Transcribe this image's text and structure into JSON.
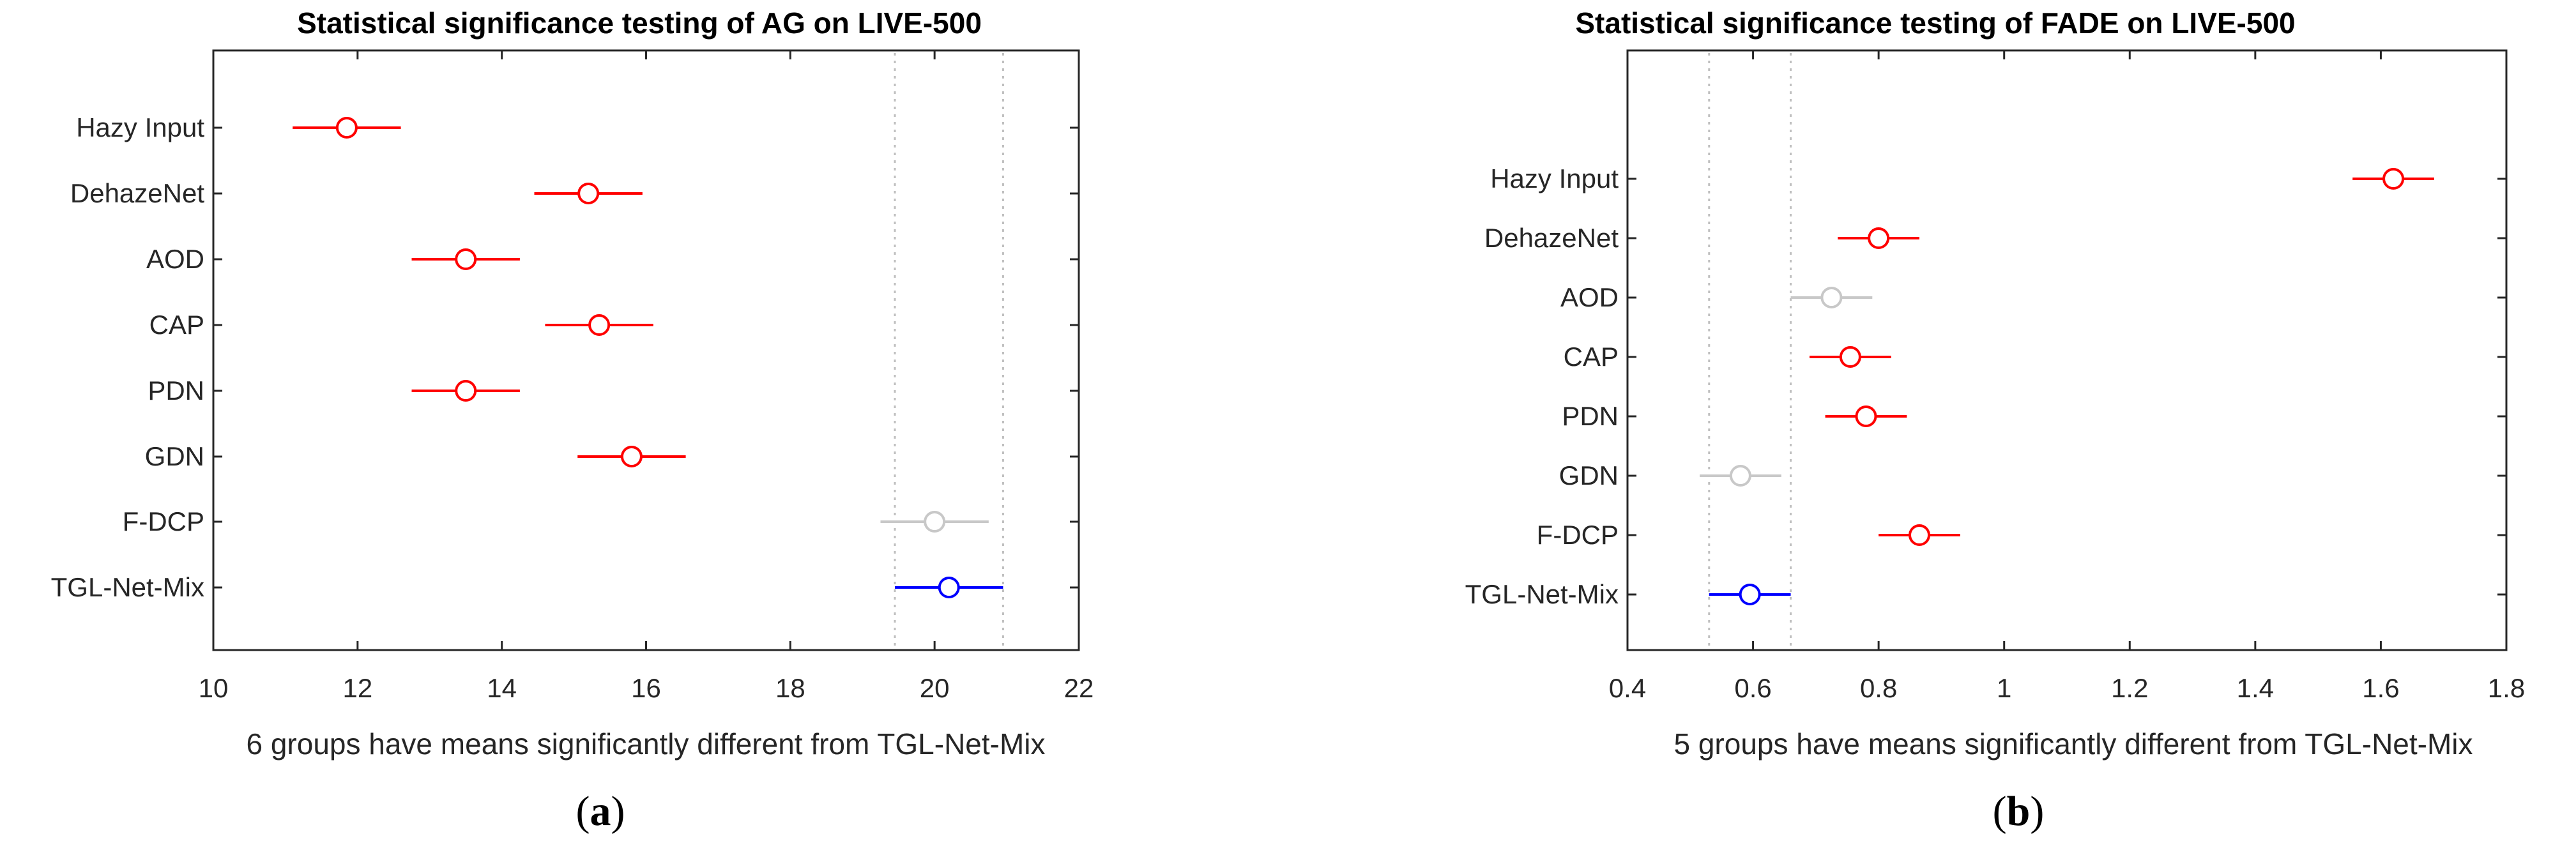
{
  "chart_data": [
    {
      "type": "scatter",
      "subtype": "multiple-comparison-intervals",
      "title": "Statistical significance testing of AG on LIVE-500",
      "xlabel": "6 groups have means significantly different from TGL-Net-Mix",
      "ylabel": "",
      "xlim": [
        10,
        22
      ],
      "xticks": [
        "10",
        "12",
        "14",
        "16",
        "18",
        "20",
        "22"
      ],
      "categories": [
        "Hazy Input",
        "DehazeNet",
        "AOD",
        "CAP",
        "PDN",
        "GDN",
        "F-DCP",
        "TGL-Net-Mix"
      ],
      "means": [
        11.85,
        15.2,
        13.5,
        15.35,
        13.5,
        15.8,
        20.0,
        20.2
      ],
      "lower": [
        11.1,
        14.45,
        12.75,
        14.6,
        12.75,
        15.05,
        19.25,
        19.45
      ],
      "upper": [
        12.6,
        15.95,
        14.25,
        16.1,
        14.25,
        16.55,
        20.75,
        20.95
      ],
      "status": [
        "different",
        "different",
        "different",
        "different",
        "different",
        "different",
        "not-different",
        "reference"
      ],
      "reference_lines": [
        19.45,
        20.95
      ],
      "caption_letter": "a"
    },
    {
      "type": "scatter",
      "subtype": "multiple-comparison-intervals",
      "title": "Statistical significance testing of FADE on LIVE-500",
      "xlabel": "5 groups have means significantly different from TGL-Net-Mix",
      "ylabel": "",
      "xlim": [
        0.4,
        1.8
      ],
      "xticks": [
        "0.4",
        "0.6",
        "0.8",
        "1",
        "1.2",
        "1.4",
        "1.6",
        "1.8"
      ],
      "categories": [
        "Hazy Input",
        "DehazeNet",
        "AOD",
        "CAP",
        "PDN",
        "GDN",
        "F-DCP",
        "TGL-Net-Mix"
      ],
      "means": [
        1.62,
        0.8,
        0.725,
        0.755,
        0.78,
        0.58,
        0.865,
        0.595
      ],
      "lower": [
        1.555,
        0.735,
        0.66,
        0.69,
        0.715,
        0.515,
        0.8,
        0.53
      ],
      "upper": [
        1.685,
        0.865,
        0.79,
        0.82,
        0.845,
        0.645,
        0.93,
        0.66
      ],
      "status": [
        "different",
        "different",
        "not-different",
        "different",
        "different",
        "not-different",
        "different",
        "reference"
      ],
      "reference_lines": [
        0.53,
        0.66
      ],
      "caption_letter": "b"
    }
  ],
  "captions": [
    {
      "open": "(",
      "letter": "a",
      "close": ")"
    },
    {
      "open": "(",
      "letter": "b",
      "close": ")"
    }
  ],
  "colors": {
    "different": "#ff0000",
    "not-different": "#c8c8c8",
    "reference": "#0000ff",
    "refline": "#bfbfbf",
    "axis": "#262626"
  }
}
